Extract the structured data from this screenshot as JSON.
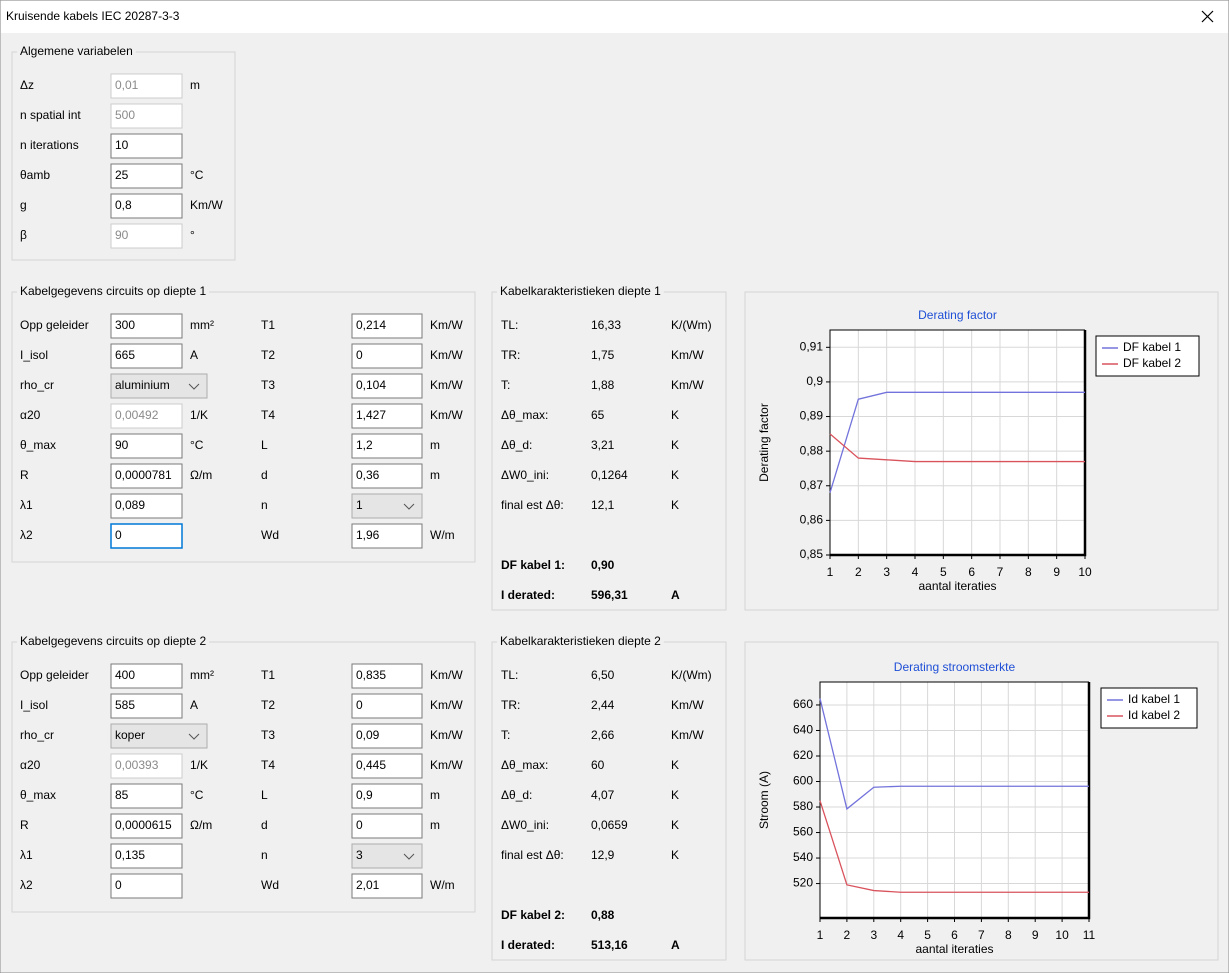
{
  "window": {
    "title": "Kruisende kabels IEC 20287-3-3"
  },
  "general": {
    "title": "Algemene variabelen",
    "rows": [
      {
        "label": "Δz",
        "value": "0,01",
        "unit": "m",
        "disabled": true
      },
      {
        "label": "n spatial int",
        "value": "500",
        "disabled": true
      },
      {
        "label": "n iterations",
        "value": "10"
      },
      {
        "label": "θamb",
        "value": "25",
        "unit": "°C"
      },
      {
        "label": "g",
        "value": "0,8",
        "unit": "Km/W"
      },
      {
        "label": "β",
        "value": "90",
        "unit": "°",
        "disabled": true
      }
    ]
  },
  "groups": [
    {
      "title": "Kabelgegevens circuits op diepte 1",
      "left": [
        {
          "label": "Opp geleider",
          "value": "300",
          "unit": "mm²"
        },
        {
          "label": "I_isol",
          "value": "665",
          "unit": "A"
        },
        {
          "label": "rho_cr",
          "value": "aluminium",
          "dropdown": true
        },
        {
          "label": "α20",
          "value": "0,00492",
          "unit": "1/K",
          "disabled": true
        },
        {
          "label": "θ_max",
          "value": "90",
          "unit": "°C"
        },
        {
          "label": "R",
          "value": "0,0000781",
          "unit": "Ω/m"
        },
        {
          "label": "λ1",
          "value": "0,089"
        },
        {
          "label": "λ2",
          "value": "0",
          "focused": true
        }
      ],
      "right": [
        {
          "label": "T1",
          "value": "0,214",
          "unit": "Km/W"
        },
        {
          "label": "T2",
          "value": "0",
          "unit": "Km/W"
        },
        {
          "label": "T3",
          "value": "0,104",
          "unit": "Km/W"
        },
        {
          "label": "T4",
          "value": "1,427",
          "unit": "Km/W"
        },
        {
          "label": "L",
          "value": "1,2",
          "unit": "m"
        },
        {
          "label": "d",
          "value": "0,36",
          "unit": "m"
        },
        {
          "label": "n",
          "value": "1",
          "dropdown": true
        },
        {
          "label": "Wd",
          "value": "1,96",
          "unit": "W/m"
        }
      ]
    },
    {
      "title": "Kabelgegevens circuits op diepte 2",
      "left": [
        {
          "label": "Opp geleider",
          "value": "400",
          "unit": "mm²"
        },
        {
          "label": "I_isol",
          "value": "585",
          "unit": "A"
        },
        {
          "label": "rho_cr",
          "value": "koper",
          "dropdown": true
        },
        {
          "label": "α20",
          "value": "0,00393",
          "unit": "1/K",
          "disabled": true
        },
        {
          "label": "θ_max",
          "value": "85",
          "unit": "°C"
        },
        {
          "label": "R",
          "value": "0,0000615",
          "unit": "Ω/m"
        },
        {
          "label": "λ1",
          "value": "0,135"
        },
        {
          "label": "λ2",
          "value": "0"
        }
      ],
      "right": [
        {
          "label": "T1",
          "value": "0,835",
          "unit": "Km/W"
        },
        {
          "label": "T2",
          "value": "0",
          "unit": "Km/W"
        },
        {
          "label": "T3",
          "value": "0,09",
          "unit": "Km/W"
        },
        {
          "label": "T4",
          "value": "0,445",
          "unit": "Km/W"
        },
        {
          "label": "L",
          "value": "0,9",
          "unit": "m"
        },
        {
          "label": "d",
          "value": "0",
          "unit": "m"
        },
        {
          "label": "n",
          "value": "3",
          "dropdown": true
        },
        {
          "label": "Wd",
          "value": "2,01",
          "unit": "W/m"
        }
      ]
    }
  ],
  "results": [
    {
      "title": "Kabelkarakteristieken diepte 1",
      "rows": [
        {
          "label": "TL:",
          "value": "16,33",
          "unit": "K/(Wm)"
        },
        {
          "label": "TR:",
          "value": "1,75",
          "unit": "Km/W"
        },
        {
          "label": "T:",
          "value": "1,88",
          "unit": "Km/W"
        },
        {
          "label": "Δθ_max:",
          "value": "65",
          "unit": "K"
        },
        {
          "label": "Δθ_d:",
          "value": "3,21",
          "unit": "K"
        },
        {
          "label": "ΔW0_ini:",
          "value": "0,1264",
          "unit": "K"
        },
        {
          "label": "final est Δθ:",
          "value": "12,1",
          "unit": "K"
        }
      ],
      "df": {
        "label": "DF kabel 1:",
        "value": "0,90"
      },
      "current": {
        "label": "I derated:",
        "value": "596,31",
        "unit": "A"
      }
    },
    {
      "title": "Kabelkarakteristieken diepte 2",
      "rows": [
        {
          "label": "TL:",
          "value": "6,50",
          "unit": "K/(Wm)"
        },
        {
          "label": "TR:",
          "value": "2,44",
          "unit": "Km/W"
        },
        {
          "label": "T:",
          "value": "2,66",
          "unit": "Km/W"
        },
        {
          "label": "Δθ_max:",
          "value": "60",
          "unit": "K"
        },
        {
          "label": "Δθ_d:",
          "value": "4,07",
          "unit": "K"
        },
        {
          "label": "ΔW0_ini:",
          "value": "0,0659",
          "unit": "K"
        },
        {
          "label": "final est Δθ:",
          "value": "12,9",
          "unit": "K"
        }
      ],
      "df": {
        "label": "DF kabel 2:",
        "value": "0,88"
      },
      "current": {
        "label": "I derated:",
        "value": "513,16",
        "unit": "A"
      }
    }
  ],
  "chart_data": [
    {
      "type": "line",
      "title": "Derating factor",
      "x_label": "aantal iteraties",
      "y_label": "Derating factor",
      "x": [
        1,
        2,
        3,
        4,
        5,
        6,
        7,
        8,
        9,
        10
      ],
      "series": [
        {
          "name": "DF kabel 1",
          "color": "#7373dc",
          "values": [
            0.868,
            0.895,
            0.897,
            0.897,
            0.897,
            0.897,
            0.897,
            0.897,
            0.897,
            0.897
          ]
        },
        {
          "name": "DF kabel 2",
          "color": "#d9535d",
          "values": [
            0.885,
            0.878,
            0.8775,
            0.877,
            0.877,
            0.877,
            0.877,
            0.877,
            0.877,
            0.877
          ]
        }
      ],
      "xlim": [
        1,
        10
      ],
      "xticks": [
        1,
        2,
        3,
        4,
        5,
        6,
        7,
        8,
        9,
        10
      ],
      "ylim": [
        0.85,
        0.915
      ],
      "yticks": [
        {
          "value": 0.85,
          "label": "0,85"
        },
        {
          "value": 0.86,
          "label": "0,86"
        },
        {
          "value": 0.87,
          "label": "0,87"
        },
        {
          "value": 0.88,
          "label": "0,88"
        },
        {
          "value": 0.89,
          "label": "0,89"
        },
        {
          "value": 0.9,
          "label": "0,9"
        },
        {
          "value": 0.91,
          "label": "0,91"
        }
      ],
      "grid": true,
      "legend": "right"
    },
    {
      "type": "line",
      "title": "Derating stroomsterkte",
      "x_label": "aantal iteraties",
      "y_label": "Stroom (A)",
      "x": [
        1,
        2,
        3,
        4,
        5,
        6,
        7,
        8,
        9,
        10,
        11
      ],
      "series": [
        {
          "name": "Id kabel 1",
          "color": "#7373dc",
          "values": [
            665,
            578.5,
            595.5,
            596.3,
            596.3,
            596.3,
            596.3,
            596.3,
            596.3,
            596.3,
            596.3
          ]
        },
        {
          "name": "Id kabel 2",
          "color": "#d9535d",
          "values": [
            585,
            519,
            514.5,
            513.2,
            513.2,
            513.2,
            513.2,
            513.2,
            513.2,
            513.2,
            513.2
          ]
        }
      ],
      "xlim": [
        1,
        11
      ],
      "xticks": [
        1,
        2,
        3,
        4,
        5,
        6,
        7,
        8,
        9,
        10,
        11
      ],
      "ylim": [
        493,
        678
      ],
      "yticks": [
        520,
        540,
        560,
        580,
        600,
        620,
        640,
        660
      ],
      "grid": true,
      "legend": "right"
    }
  ]
}
